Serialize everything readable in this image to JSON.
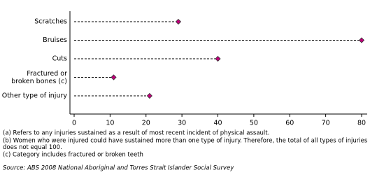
{
  "chart_data": {
    "type": "dot",
    "categories": [
      "Scratches",
      "Bruises",
      "Cuts",
      "Fractured or\nbroken bones (c)",
      "Other type of injury"
    ],
    "values": [
      29,
      80,
      40,
      11,
      21
    ],
    "color": "#c0007a",
    "xlim": [
      0,
      80
    ],
    "xticks": [
      0,
      10,
      20,
      30,
      40,
      50,
      60,
      70,
      80
    ],
    "notes": [
      "(a) Refers to any injuries sustained as a result of most recent incident of physical assault.",
      "(b) Women who were injured could have sustained more than one type of injury. Therefore, the total of all types of injuries\ndoes not equal 100.",
      "(c) Category includes fractured or broken teeth"
    ],
    "source": "Source: ABS 2008 National Aboriginal and Torres Strait Islander Social Survey"
  }
}
